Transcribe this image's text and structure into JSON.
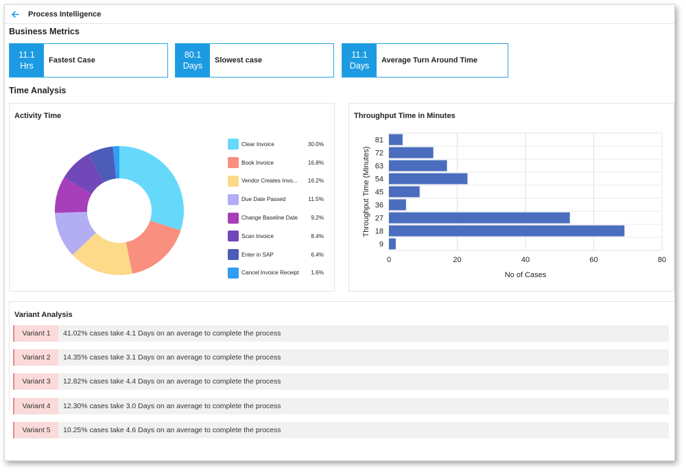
{
  "header": {
    "title": "Process Intelligence",
    "back_icon": "arrow-left-icon"
  },
  "sections": {
    "business_metrics": "Business Metrics",
    "time_analysis": "Time Analysis"
  },
  "metrics": [
    {
      "value": "11.1",
      "unit": "Hrs",
      "label": "Fastest Case"
    },
    {
      "value": "80.1",
      "unit": "Days",
      "label": "Slowest case"
    },
    {
      "value": "11.1",
      "unit": "Days",
      "label": "Average Turn Around Time"
    }
  ],
  "activity_panel": {
    "title": "Activity Time"
  },
  "throughput_panel": {
    "title": "Throughput Time in Minutes"
  },
  "variant_panel": {
    "title": "Variant Analysis",
    "rows": [
      {
        "tag": "Variant 1",
        "text": "41.02% cases take 4.1 Days on an average to complete the process"
      },
      {
        "tag": "Variant 2",
        "text": "14.35% cases take 3.1 Days on an average to complete the process"
      },
      {
        "tag": "Variant 3",
        "text": "12.82% cases take 4.4 Days on an average to complete the process"
      },
      {
        "tag": "Variant 4",
        "text": "12.30% cases take 3.0 Days on an average to complete the process"
      },
      {
        "tag": "Variant 5",
        "text": "10.25% cases take 4.6 Days on an average to complete the process"
      }
    ]
  },
  "chart_data": [
    {
      "type": "pie",
      "variant": "donut",
      "title": "Activity Time",
      "legend_position": "right",
      "slices": [
        {
          "label": "Clear Invoice",
          "display": "30.0%",
          "value": 30.0,
          "color": "#66d9fb"
        },
        {
          "label": "Book Invoice",
          "display": "16.8%",
          "value": 16.8,
          "color": "#f98f7e"
        },
        {
          "label": "Vendor Creates Invo...",
          "display": "16.2%",
          "value": 16.2,
          "color": "#fdd98a"
        },
        {
          "label": "Due Date Passed",
          "display": "11.5%",
          "value": 11.5,
          "color": "#b3adf4"
        },
        {
          "label": "Change Baseline Date",
          "display": "9.2%",
          "value": 9.2,
          "color": "#a63fb9"
        },
        {
          "label": "Scan Invoice",
          "display": "8.4%",
          "value": 8.4,
          "color": "#7048b8"
        },
        {
          "label": "Enter in SAP",
          "display": "6.4%",
          "value": 6.4,
          "color": "#4d5cb8"
        },
        {
          "label": "Cancel Invoice Receipt",
          "display": "1.6%",
          "value": 1.6,
          "color": "#2f9ef3"
        }
      ]
    },
    {
      "type": "bar",
      "orientation": "horizontal",
      "title": "Throughput Time in Minutes",
      "xlabel": "No of Cases",
      "ylabel": "Throughput Time (Minutes)",
      "categories": [
        "81",
        "72",
        "63",
        "54",
        "45",
        "36",
        "27",
        "18",
        "9"
      ],
      "values": [
        4,
        13,
        17,
        23,
        9,
        5,
        53,
        69,
        2
      ],
      "xlim": [
        0,
        80
      ],
      "xticks": [
        "0",
        "20",
        "40",
        "60",
        "80"
      ],
      "grid": true,
      "bar_color": "#4a6dbe"
    }
  ]
}
